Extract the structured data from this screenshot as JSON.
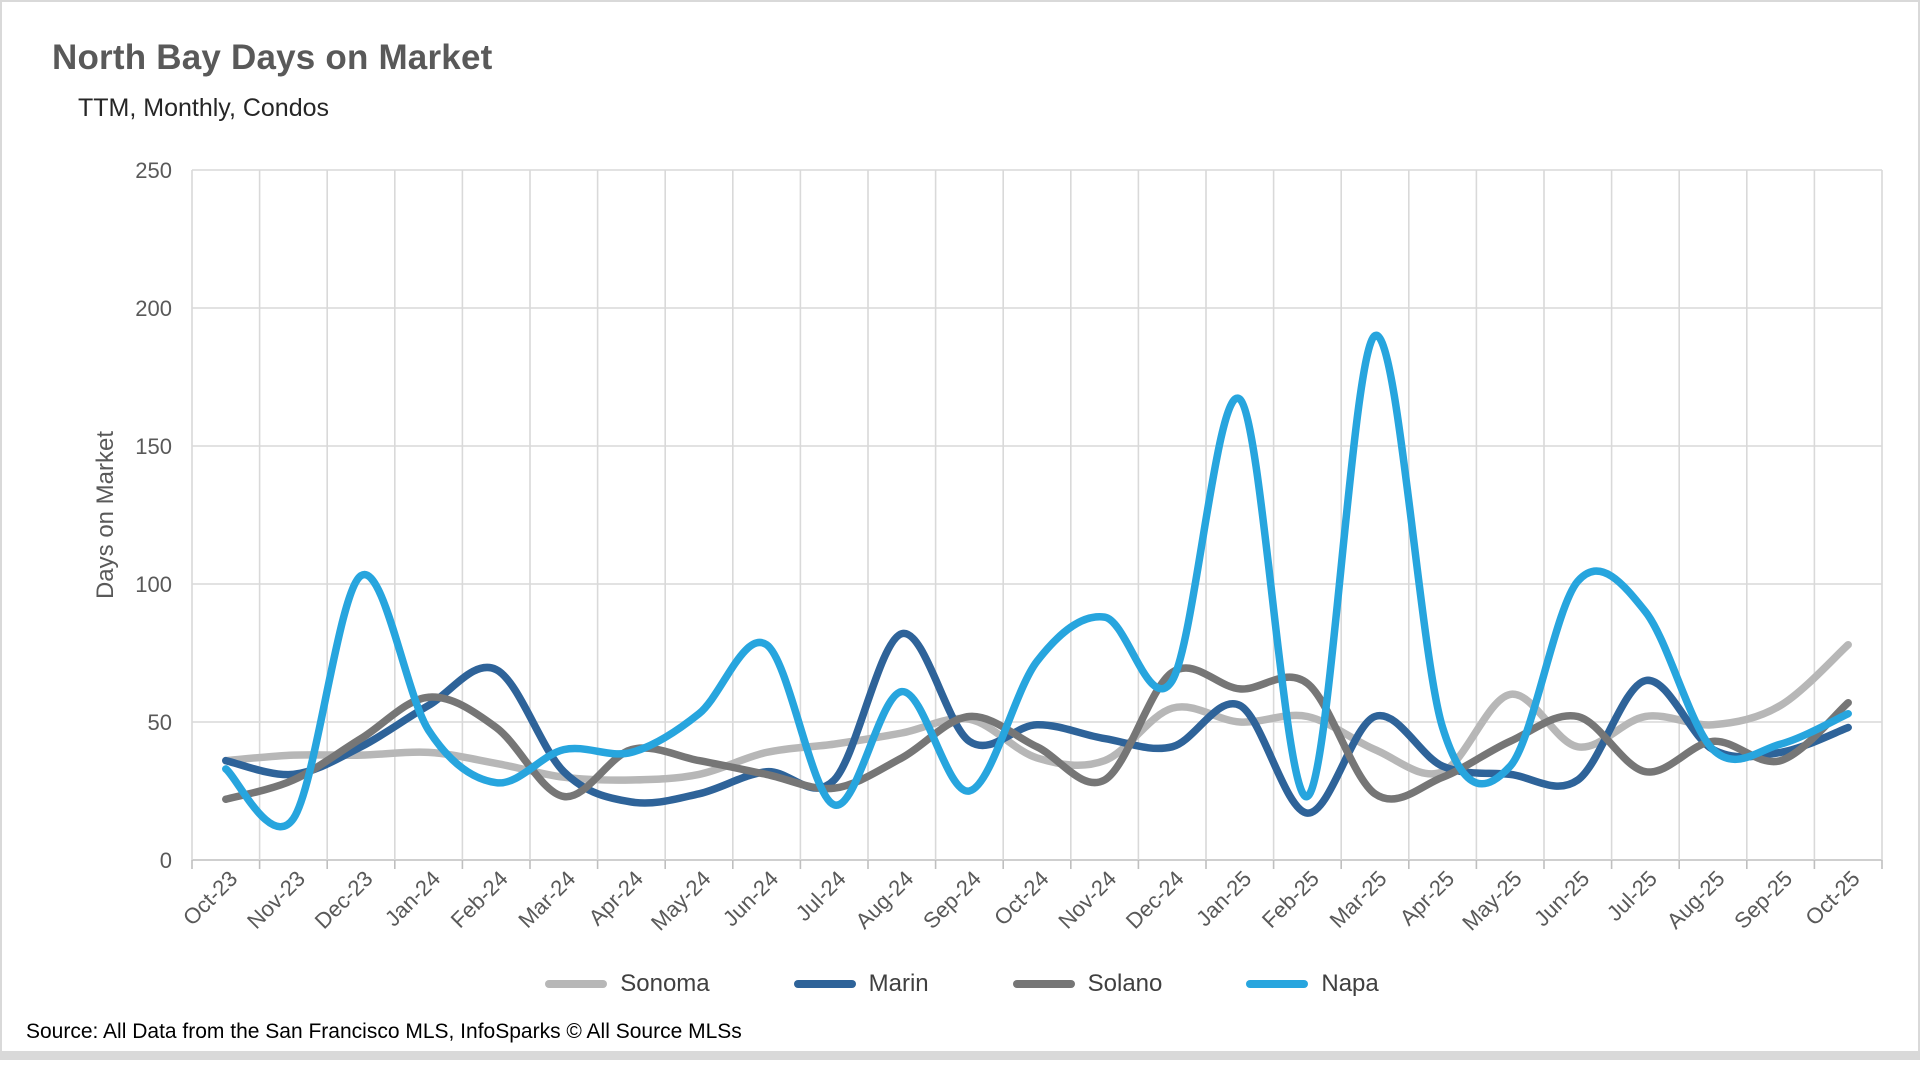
{
  "header": {
    "title": "North Bay Days on Market",
    "subtitle": "TTM, Monthly, Condos"
  },
  "chart_data": {
    "type": "line",
    "title": "North Bay Days on Market",
    "subtitle": "TTM, Monthly, Condos",
    "xlabel": "",
    "ylabel": "Days on Market",
    "ylim": [
      0,
      250
    ],
    "ytick_step": 50,
    "grid": true,
    "smoothed": true,
    "legend_position": "bottom",
    "categories": [
      "Oct-23",
      "Nov-23",
      "Dec-23",
      "Jan-24",
      "Feb-24",
      "Mar-24",
      "Apr-24",
      "May-24",
      "Jun-24",
      "Jul-24",
      "Aug-24",
      "Sep-24",
      "Oct-24",
      "Nov-24",
      "Dec-24",
      "Jan-25",
      "Feb-25",
      "Mar-25",
      "Apr-25",
      "May-25",
      "Jun-25",
      "Jul-25",
      "Aug-25",
      "Sep-25",
      "Oct-25"
    ],
    "series": [
      {
        "name": "Sonoma",
        "color": "#b7b7b7",
        "values": [
          36,
          38,
          38,
          39,
          35,
          30,
          29,
          31,
          39,
          42,
          46,
          51,
          37,
          36,
          55,
          50,
          52,
          40,
          32,
          60,
          41,
          52,
          49,
          56,
          78
        ]
      },
      {
        "name": "Marin",
        "color": "#2e6399",
        "values": [
          36,
          31,
          41,
          56,
          69,
          32,
          21,
          24,
          32,
          29,
          82,
          43,
          49,
          44,
          41,
          56,
          17,
          52,
          34,
          31,
          29,
          65,
          40,
          39,
          48
        ]
      },
      {
        "name": "Solano",
        "color": "#767676",
        "values": [
          22,
          29,
          44,
          59,
          48,
          23,
          40,
          36,
          31,
          26,
          37,
          52,
          41,
          29,
          68,
          62,
          64,
          24,
          30,
          43,
          52,
          32,
          43,
          36,
          57
        ]
      },
      {
        "name": "Napa",
        "color": "#27a5de",
        "values": [
          33,
          15,
          103,
          47,
          28,
          40,
          39,
          53,
          78,
          20,
          61,
          25,
          72,
          88,
          65,
          167,
          23,
          190,
          48,
          34,
          101,
          90,
          40,
          42,
          53
        ]
      }
    ],
    "colors": {
      "gridline": "#d9d9d9",
      "axis_line": "#bfbfbf",
      "tick_label": "#595959"
    }
  },
  "footer": {
    "source": "Source: All Data from the San Francisco MLS, InfoSparks © All Source MLSs"
  }
}
